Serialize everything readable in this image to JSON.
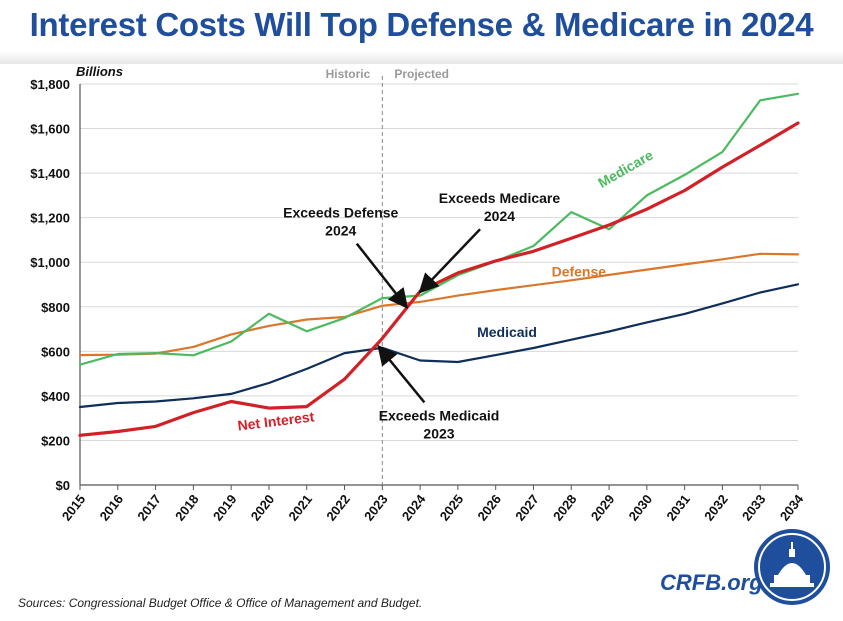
{
  "title": "Interest Costs Will Top Defense & Medicare in 2024",
  "sources": "Sources: Congressional Budget Office & Office of Management and Budget.",
  "brand": "CRFB.org",
  "colors": {
    "title": "#1f4e9c",
    "net_interest": "#d22027",
    "medicare": "#4cbb5f",
    "defense": "#d9782d",
    "medicaid": "#0f2f5a"
  },
  "chart_data": {
    "type": "line",
    "title": "Interest Costs Will Top Defense & Medicare in 2024",
    "ylabel": "Billions",
    "xlabel": "",
    "ylim": [
      0,
      1800
    ],
    "yticks": [
      0,
      200,
      400,
      600,
      800,
      1000,
      1200,
      1400,
      1600,
      1800
    ],
    "ytick_labels": [
      "$0",
      "$200",
      "$400",
      "$600",
      "$800",
      "$1,000",
      "$1,200",
      "$1,400",
      "$1,600",
      "$1,800"
    ],
    "x": [
      2015,
      2016,
      2017,
      2018,
      2019,
      2020,
      2021,
      2022,
      2023,
      2024,
      2025,
      2026,
      2027,
      2028,
      2029,
      2030,
      2031,
      2032,
      2033,
      2034
    ],
    "grid": "horizontal",
    "divider": {
      "x": 2023,
      "left_label": "Historic",
      "right_label": "Projected"
    },
    "series": [
      {
        "name": "Net Interest",
        "color": "#d22027",
        "width": 3.2,
        "values": [
          223,
          240,
          263,
          325,
          375,
          345,
          352,
          475,
          658,
          870,
          952,
          1006,
          1049,
          1108,
          1167,
          1238,
          1322,
          1427,
          1525,
          1625
        ]
      },
      {
        "name": "Medicare",
        "color": "#4cbb5f",
        "width": 2.2,
        "values": [
          540,
          588,
          592,
          582,
          644,
          769,
          690,
          749,
          839,
          850,
          942,
          1004,
          1073,
          1225,
          1148,
          1300,
          1392,
          1495,
          1727,
          1756
        ]
      },
      {
        "name": "Defense",
        "color": "#d9782d",
        "width": 2.2,
        "values": [
          583,
          585,
          590,
          620,
          676,
          714,
          743,
          754,
          805,
          822,
          850,
          875,
          897,
          919,
          943,
          967,
          990,
          1013,
          1038,
          1035
        ]
      },
      {
        "name": "Medicaid",
        "color": "#0f2f5a",
        "width": 2.2,
        "values": [
          350,
          368,
          375,
          389,
          409,
          458,
          521,
          592,
          616,
          559,
          552,
          583,
          615,
          652,
          689,
          730,
          768,
          815,
          864,
          901
        ]
      }
    ],
    "series_labels": [
      {
        "text": "Net Interest",
        "series": "Net Interest",
        "x": 2020.2,
        "y": 265,
        "rotate": -7
      },
      {
        "text": "Medicare",
        "series": "Medicare",
        "x": 2029.5,
        "y": 1400,
        "rotate": -30
      },
      {
        "text": "Defense",
        "series": "Defense",
        "x": 2028.2,
        "y": 935,
        "rotate": 0
      },
      {
        "text": "Medicaid",
        "series": "Medicaid",
        "x": 2026.3,
        "y": 665,
        "rotate": 0
      }
    ],
    "annotations": [
      {
        "lines": [
          "Exceeds Defense",
          "2024"
        ],
        "text_x": 2021.9,
        "text_y": 1200,
        "tip_x": 2023.6,
        "tip_y": 808
      },
      {
        "lines": [
          "Exceeds Medicare",
          "2024"
        ],
        "text_x": 2026.1,
        "text_y": 1265,
        "tip_x": 2024.05,
        "tip_y": 875
      },
      {
        "lines": [
          "Exceeds Medicaid",
          "2023"
        ],
        "text_x": 2024.5,
        "text_y": 290,
        "tip_x": 2022.95,
        "tip_y": 612
      }
    ]
  }
}
